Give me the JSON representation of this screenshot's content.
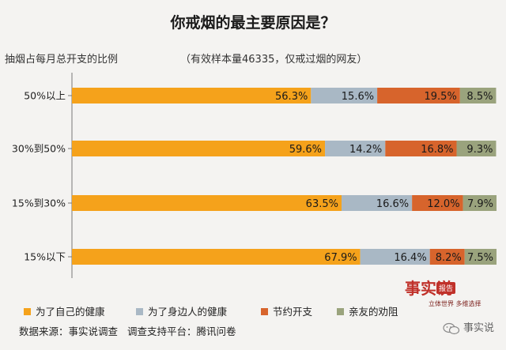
{
  "chart_data": {
    "type": "bar",
    "orientation": "horizontal",
    "stacked": true,
    "title": "你戒烟的最主要原因是？",
    "subtitle": "（有效样本量46335，仅戒过烟的网友）",
    "ylabel": "抽烟占每月总开支的比例",
    "categories": [
      "50%以上",
      "30%到50%",
      "15%到30%",
      "15%以下"
    ],
    "series": [
      {
        "name": "为了自己的健康",
        "color": "#f5a21b",
        "values": [
          56.3,
          59.6,
          63.5,
          67.9
        ],
        "labels": [
          "56.3%",
          "59.6%",
          "63.5%",
          "67.9%"
        ]
      },
      {
        "name": "为了身边人的健康",
        "color": "#a9b8c5",
        "values": [
          15.6,
          14.2,
          16.6,
          16.4
        ],
        "labels": [
          "15.6%",
          "14.2%",
          "16.6%",
          "16.4%"
        ]
      },
      {
        "name": "节约开支",
        "color": "#d7642c",
        "values": [
          19.5,
          16.8,
          12.0,
          8.2
        ],
        "labels": [
          "19.5%",
          "16.8%",
          "12.0%",
          "8.2%"
        ]
      },
      {
        "name": "亲友的劝阻",
        "color": "#9aa37d",
        "values": [
          8.5,
          9.3,
          7.9,
          7.5
        ],
        "labels": [
          "8.5%",
          "9.3%",
          "7.9%",
          "7.5%"
        ]
      }
    ],
    "xlim": [
      0,
      100
    ],
    "grid": false,
    "legend_position": "bottom"
  },
  "footer": {
    "source": "数据来源：事实说调查",
    "platform": "调查支持平台：腾讯问卷"
  },
  "stamp": {
    "big": "事实说",
    "badge": "报告",
    "sub": "立体世界 多维选择"
  },
  "watermark": {
    "text": "事实说"
  }
}
